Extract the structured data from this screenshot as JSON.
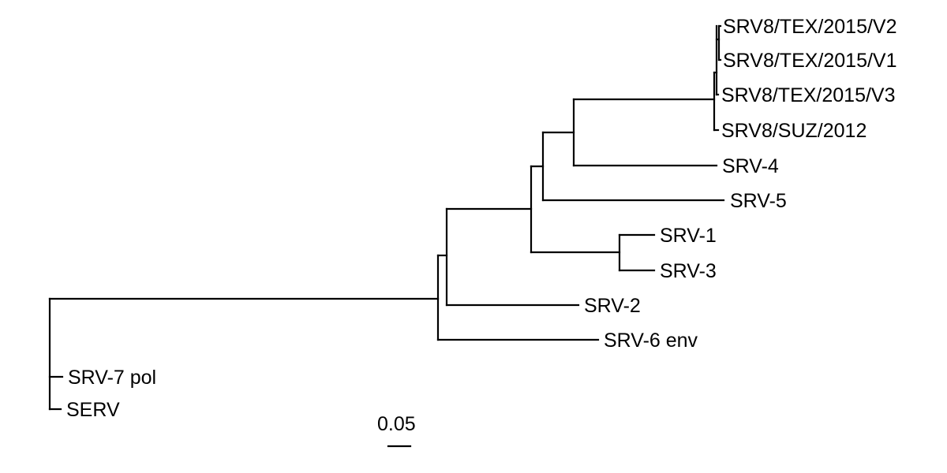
{
  "tree": {
    "taxa": [
      {
        "id": "v2",
        "label": "SRV8/TEX/2015/V2"
      },
      {
        "id": "v1",
        "label": "SRV8/TEX/2015/V1"
      },
      {
        "id": "v3",
        "label": "SRV8/TEX/2015/V3"
      },
      {
        "id": "suz",
        "label": "SRV8/SUZ/2012"
      },
      {
        "id": "srv4",
        "label": "SRV-4"
      },
      {
        "id": "srv5",
        "label": "SRV-5"
      },
      {
        "id": "srv1",
        "label": "SRV-1"
      },
      {
        "id": "srv3",
        "label": "SRV-3"
      },
      {
        "id": "srv2",
        "label": "SRV-2"
      },
      {
        "id": "srv6",
        "label": "SRV-6 env"
      },
      {
        "id": "srv7",
        "label": "SRV-7 pol"
      },
      {
        "id": "serv",
        "label": "SERV"
      }
    ],
    "scale_bar": {
      "label": "0.05",
      "length": 0.05
    }
  }
}
